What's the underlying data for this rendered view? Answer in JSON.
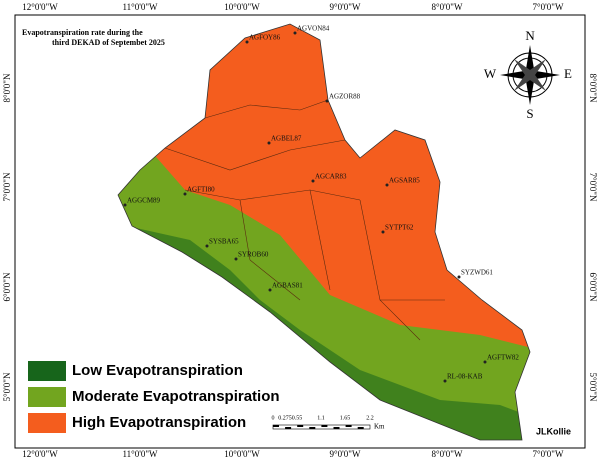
{
  "title_lines": [
    "Evapotranspiration rate during the",
    "third DEKAD of Septembet 2025"
  ],
  "longitude_labels": [
    "12°0'0\"W",
    "11°0'0\"W",
    "10°0'0\"W",
    "9°0'0\"W",
    "8°0'0\"W",
    "7°0'0\"W"
  ],
  "latitude_labels": [
    "8°0'0\"N",
    "7°0'0\"N",
    "6°0'0\"N",
    "5°0'0\"N"
  ],
  "compass": {
    "n": "N",
    "e": "E",
    "s": "S",
    "w": "W"
  },
  "stations": [
    "AGFOY86",
    "AGVON84",
    "AGZOR88",
    "AGBEL87",
    "AGCAR83",
    "AGSAR85",
    "AGFTI80",
    "AGGCM89",
    "SYTPT62",
    "SYSBA65",
    "SYROB60",
    "SYZWD61",
    "AGBAS81",
    "AGFTW82",
    "RL-08-KAB"
  ],
  "legend": [
    {
      "label": "Low Evapotranspiration",
      "color": "#17651b"
    },
    {
      "label": "Moderate Evapotranspiration",
      "color": "#72a51f"
    },
    {
      "label": "High Evapotranspiration",
      "color": "#f45d1e"
    }
  ],
  "scale_bar": {
    "ticks": [
      "0",
      "0.275",
      "0.55",
      "1.1",
      "1.65",
      "2.2"
    ],
    "unit": "Km"
  },
  "credit": "JLKollie"
}
